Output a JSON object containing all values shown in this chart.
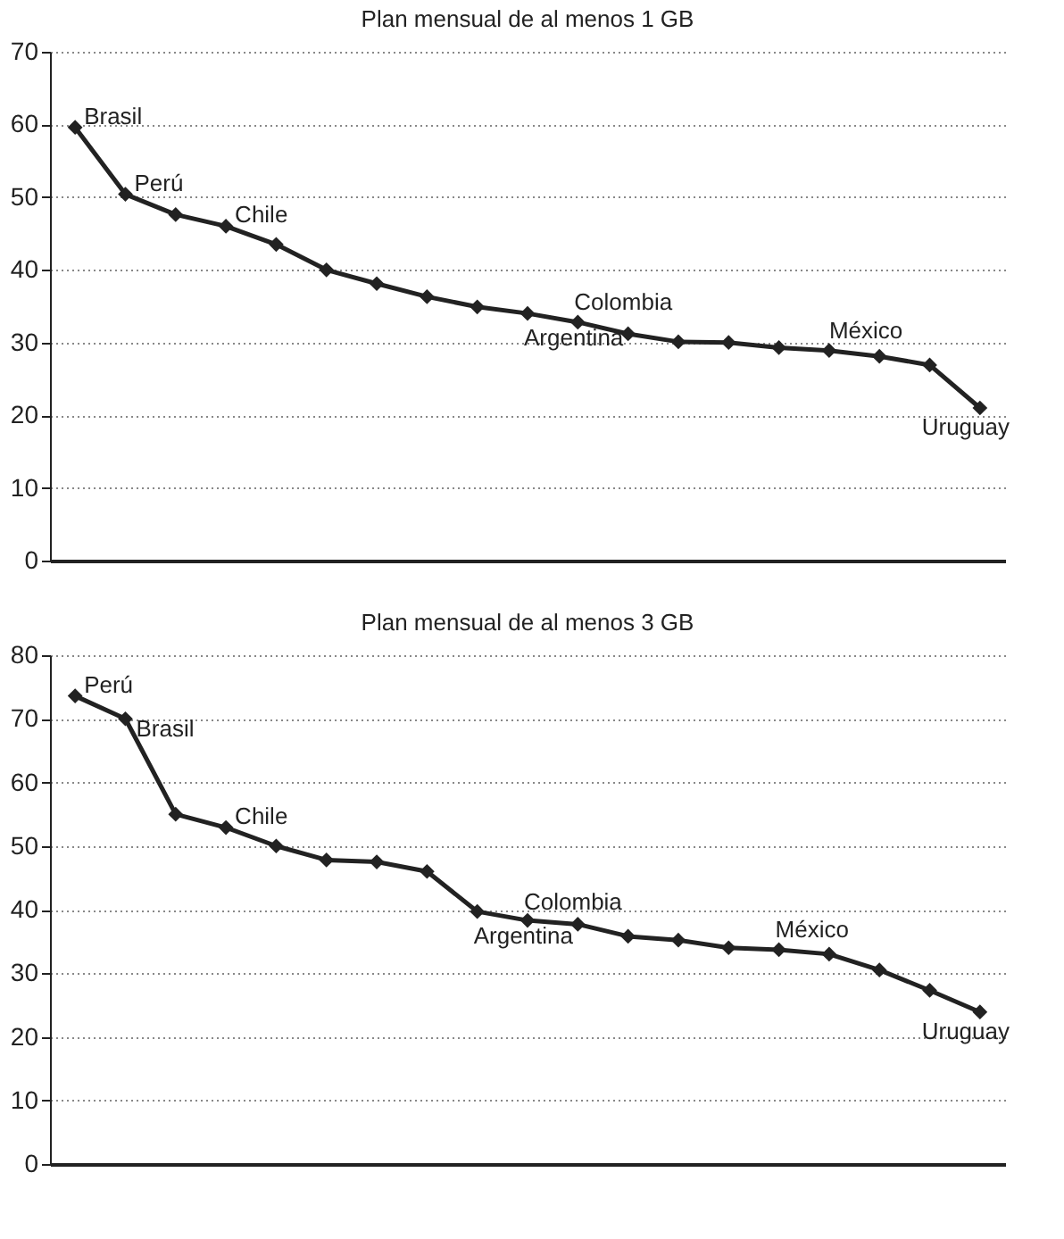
{
  "chart_data": [
    {
      "type": "line",
      "title": "Plan mensual de al menos 1 GB",
      "categories": [
        null,
        null,
        null,
        null,
        null,
        null,
        null,
        null,
        null,
        null,
        null,
        null,
        null,
        null,
        null,
        null,
        null,
        null,
        null
      ],
      "values": [
        59.6,
        50.4,
        47.6,
        46.0,
        43.5,
        40.0,
        38.1,
        36.3,
        34.9,
        34.0,
        32.8,
        31.2,
        30.1,
        30.0,
        29.3,
        28.9,
        28.1,
        26.9,
        21.0
      ],
      "color": "#222222",
      "ylim": [
        0,
        70
      ],
      "yticks": [
        0,
        10,
        20,
        30,
        40,
        50,
        60,
        70
      ],
      "grid": "y",
      "marker": "diamond",
      "line_style": "solid",
      "tick_labels": "y",
      "annotations": [
        "Brasil",
        "Perú",
        "Chile",
        "Argentina",
        "Colombia",
        "México",
        "Uruguay"
      ]
    },
    {
      "type": "line",
      "title": "Plan mensual de al menos 3 GB",
      "categories": [
        null,
        null,
        null,
        null,
        null,
        null,
        null,
        null,
        null,
        null,
        null,
        null,
        null,
        null,
        null,
        null,
        null,
        null,
        null
      ],
      "values": [
        73.6,
        70.0,
        55.0,
        52.9,
        50.0,
        47.8,
        47.5,
        46.0,
        39.7,
        38.3,
        37.7,
        35.8,
        35.2,
        34.0,
        33.7,
        33.0,
        30.5,
        27.3,
        23.9
      ],
      "color": "#222222",
      "ylim": [
        0,
        80
      ],
      "yticks": [
        0,
        10,
        20,
        30,
        40,
        50,
        60,
        70,
        80
      ],
      "grid": "y",
      "marker": "diamond",
      "line_style": "solid",
      "tick_labels": "y",
      "annotations": [
        "Perú",
        "Brasil",
        "Chile",
        "Argentina",
        "Colombia",
        "México",
        "Uruguay"
      ]
    }
  ]
}
